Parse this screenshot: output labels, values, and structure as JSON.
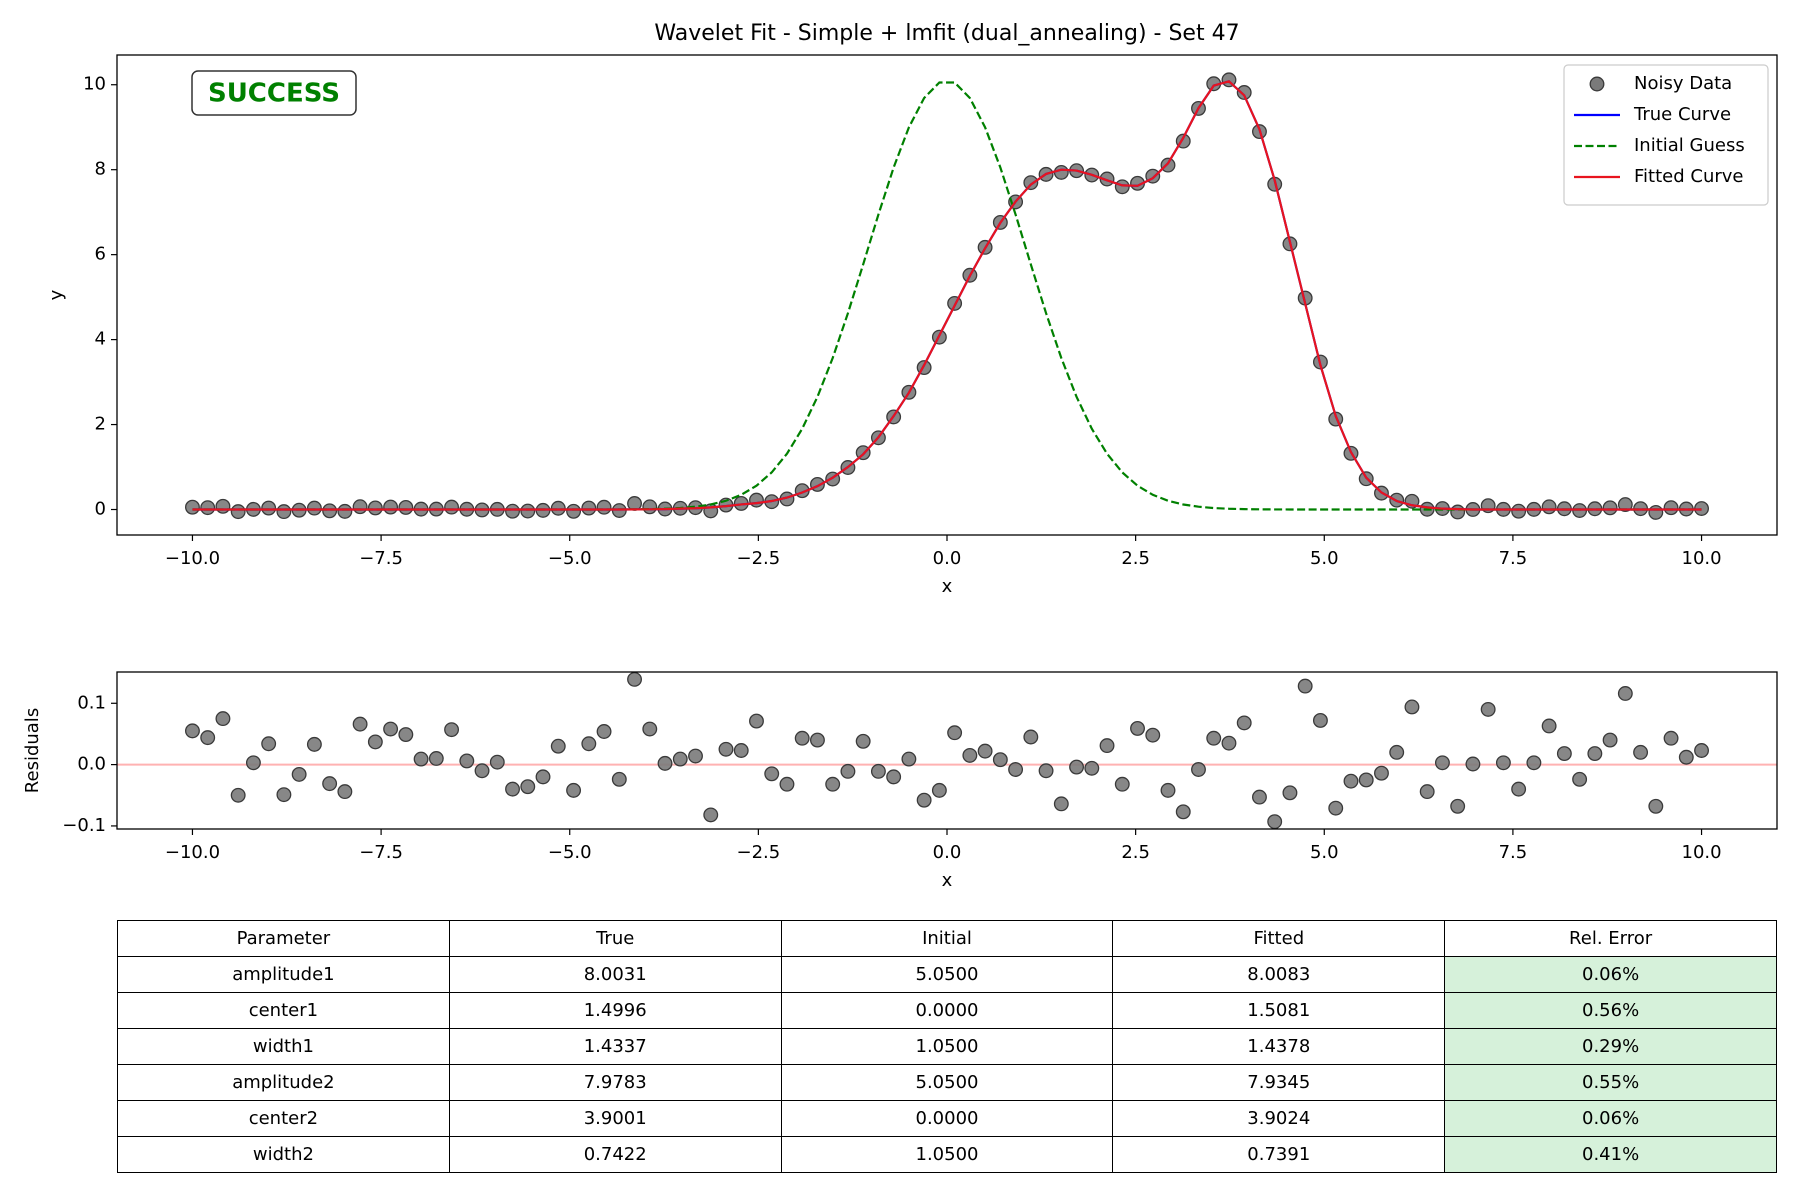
{
  "chart_data": [
    {
      "type": "line",
      "title": "Wavelet Fit - Simple + lmfit (dual_annealing) - Set 47",
      "xlabel": "x",
      "ylabel": "y",
      "annotation": "SUCCESS",
      "annotation_color": "#008000",
      "xlim": [
        -11,
        11
      ],
      "ylim": [
        -0.6,
        10.7
      ],
      "xticks": [
        {
          "value": -10,
          "label": "−10.0"
        },
        {
          "value": -7.5,
          "label": "−7.5"
        },
        {
          "value": -5,
          "label": "−5.0"
        },
        {
          "value": -2.5,
          "label": "−2.5"
        },
        {
          "value": 0,
          "label": "0.0"
        },
        {
          "value": 2.5,
          "label": "2.5"
        },
        {
          "value": 5,
          "label": "5.0"
        },
        {
          "value": 7.5,
          "label": "7.5"
        },
        {
          "value": 10,
          "label": "10.0"
        }
      ],
      "yticks": [
        0,
        2,
        4,
        6,
        8,
        10
      ],
      "grid": false,
      "legend": "upper right",
      "x": [
        -10,
        -9.798,
        -9.596,
        -9.394,
        -9.192,
        -8.99,
        -8.788,
        -8.586,
        -8.384,
        -8.182,
        -7.98,
        -7.778,
        -7.576,
        -7.374,
        -7.172,
        -6.97,
        -6.768,
        -6.566,
        -6.364,
        -6.162,
        -5.96,
        -5.758,
        -5.556,
        -5.354,
        -5.152,
        -4.949,
        -4.747,
        -4.545,
        -4.343,
        -4.141,
        -3.939,
        -3.737,
        -3.535,
        -3.333,
        -3.131,
        -2.929,
        -2.727,
        -2.525,
        -2.323,
        -2.121,
        -1.919,
        -1.717,
        -1.515,
        -1.313,
        -1.111,
        -0.909,
        -0.707,
        -0.505,
        -0.303,
        -0.101,
        0.101,
        0.303,
        0.505,
        0.707,
        0.909,
        1.111,
        1.313,
        1.515,
        1.717,
        1.919,
        2.121,
        2.323,
        2.525,
        2.727,
        2.929,
        3.131,
        3.333,
        3.535,
        3.737,
        3.939,
        4.141,
        4.343,
        4.545,
        4.747,
        4.949,
        5.152,
        5.354,
        5.556,
        5.758,
        5.96,
        6.162,
        6.364,
        6.566,
        6.768,
        6.97,
        7.172,
        7.374,
        7.576,
        7.778,
        7.98,
        8.182,
        8.384,
        8.586,
        8.788,
        8.99,
        9.192,
        9.394,
        9.596,
        9.798,
        10
      ],
      "series": [
        {
          "name": "Noisy Data",
          "style": "marker",
          "color": "#7a7a7a",
          "edgecolor": "#3a3a3a",
          "values": [
            0.055,
            0.044,
            0.075,
            -0.05,
            0.003,
            0.034,
            -0.049,
            -0.016,
            0.033,
            -0.031,
            -0.044,
            0.066,
            0.037,
            0.058,
            0.049,
            0.009,
            0.01,
            0.057,
            0.006,
            -0.01,
            0.004,
            -0.04,
            -0.036,
            -0.02,
            0.03,
            -0.042,
            0.034,
            0.054,
            -0.024,
            0.142,
            0.063,
            0.012,
            0.029,
            0.044,
            -0.032,
            0.105,
            0.143,
            0.221,
            0.185,
            0.248,
            0.443,
            0.59,
            0.718,
            0.989,
            1.338,
            1.689,
            2.18,
            2.759,
            3.342,
            4.058,
            4.852,
            5.515,
            6.172,
            6.758,
            7.242,
            7.695,
            7.89,
            7.936,
            7.976,
            7.874,
            7.781,
            7.598,
            7.679,
            7.848,
            8.108,
            8.673,
            9.442,
            10.023,
            10.115,
            9.818,
            8.897,
            7.657,
            6.254,
            4.978,
            3.472,
            2.129,
            1.323,
            0.725,
            0.386,
            0.22,
            0.194,
            0.006,
            0.023,
            -0.058,
            0.001,
            0.09,
            0.003,
            -0.04,
            0.003,
            0.063,
            0.018,
            -0.024,
            0.018,
            0.04,
            0.116,
            0.02,
            -0.068,
            0.043,
            0.012,
            0.023
          ]
        },
        {
          "name": "True Curve",
          "style": "solid",
          "color": "#0000ff",
          "values": [
            0,
            0,
            0,
            0,
            0,
            0,
            0,
            0,
            0,
            0,
            0,
            0,
            0,
            0,
            0,
            0,
            0,
            0,
            0,
            0,
            0,
            0,
            0,
            0,
            0,
            0,
            0,
            0,
            0,
            0.003,
            0.005,
            0.01,
            0.02,
            0.03,
            0.05,
            0.08,
            0.12,
            0.15,
            0.2,
            0.28,
            0.4,
            0.55,
            0.75,
            1.0,
            1.3,
            1.7,
            2.2,
            2.75,
            3.4,
            4.1,
            4.8,
            5.5,
            6.15,
            6.75,
            7.25,
            7.65,
            7.9,
            8.0,
            7.98,
            7.88,
            7.75,
            7.63,
            7.62,
            7.8,
            8.15,
            8.75,
            9.45,
            9.98,
            10.08,
            9.75,
            8.95,
            7.75,
            6.3,
            4.85,
            3.4,
            2.2,
            1.35,
            0.75,
            0.4,
            0.2,
            0.1,
            0.05,
            0.02,
            0.01,
            0,
            0,
            0,
            0,
            0,
            0,
            0,
            0,
            0,
            0,
            0,
            0,
            0,
            0,
            0,
            0
          ]
        },
        {
          "name": "Initial Guess",
          "style": "dashed",
          "color": "#008000",
          "values": [
            0,
            0,
            0,
            0,
            0,
            0,
            0,
            0,
            0,
            0,
            0,
            0,
            0,
            0,
            0,
            0,
            0,
            0,
            0,
            0,
            0,
            0,
            0,
            0,
            0,
            0,
            0,
            0.001,
            0.002,
            0.004,
            0.009,
            0.018,
            0.035,
            0.066,
            0.118,
            0.206,
            0.346,
            0.56,
            0.874,
            1.313,
            1.901,
            2.652,
            3.566,
            4.622,
            5.77,
            6.944,
            8.052,
            8.997,
            9.688,
            10.053,
            10.053,
            9.688,
            8.997,
            8.052,
            6.944,
            5.77,
            4.622,
            3.566,
            2.652,
            1.901,
            1.313,
            0.874,
            0.56,
            0.346,
            0.206,
            0.118,
            0.066,
            0.035,
            0.018,
            0.009,
            0.004,
            0.002,
            0.001,
            0,
            0,
            0,
            0,
            0,
            0,
            0,
            0,
            0,
            0,
            0,
            0,
            0,
            0,
            0,
            0,
            0,
            0,
            0,
            0,
            0,
            0,
            0,
            0,
            0,
            0,
            0
          ]
        },
        {
          "name": "Fitted Curve",
          "style": "solid",
          "color": "#e8141e",
          "values": [
            0,
            0,
            0,
            0,
            0,
            0,
            0,
            0,
            0,
            0,
            0,
            0,
            0,
            0,
            0,
            0,
            0,
            0,
            0,
            0,
            0,
            0,
            0,
            0,
            0,
            0,
            0,
            0,
            0,
            0.003,
            0.005,
            0.01,
            0.02,
            0.03,
            0.05,
            0.08,
            0.12,
            0.15,
            0.2,
            0.28,
            0.4,
            0.55,
            0.75,
            1.0,
            1.3,
            1.7,
            2.2,
            2.75,
            3.4,
            4.1,
            4.8,
            5.5,
            6.15,
            6.75,
            7.25,
            7.65,
            7.9,
            8.0,
            7.98,
            7.88,
            7.75,
            7.63,
            7.62,
            7.8,
            8.15,
            8.75,
            9.45,
            9.98,
            10.08,
            9.75,
            8.95,
            7.75,
            6.3,
            4.85,
            3.4,
            2.2,
            1.35,
            0.75,
            0.4,
            0.2,
            0.1,
            0.05,
            0.02,
            0.01,
            0,
            0,
            0,
            0,
            0,
            0,
            0,
            0,
            0,
            0,
            0,
            0,
            0,
            0,
            0,
            0
          ]
        }
      ]
    },
    {
      "type": "scatter",
      "xlabel": "x",
      "ylabel": "Residuals",
      "xlim": [
        -11,
        11
      ],
      "ylim": [
        -0.105,
        0.151
      ],
      "xticks": [
        {
          "value": -10,
          "label": "−10.0"
        },
        {
          "value": -7.5,
          "label": "−7.5"
        },
        {
          "value": -5,
          "label": "−5.0"
        },
        {
          "value": -2.5,
          "label": "−2.5"
        },
        {
          "value": 0,
          "label": "0.0"
        },
        {
          "value": 2.5,
          "label": "2.5"
        },
        {
          "value": 5,
          "label": "5.0"
        },
        {
          "value": 7.5,
          "label": "7.5"
        },
        {
          "value": 10,
          "label": "10.0"
        }
      ],
      "yticks": [
        {
          "value": -0.1,
          "label": "−0.1"
        },
        {
          "value": 0,
          "label": "0.0"
        },
        0.1
      ],
      "grid": false,
      "hline": 0,
      "hline_color": "#ffb2b2",
      "color": "#7a7a7a",
      "edgecolor": "#3a3a3a",
      "values": [
        0.055,
        0.044,
        0.075,
        -0.05,
        0.003,
        0.034,
        -0.049,
        -0.016,
        0.033,
        -0.031,
        -0.044,
        0.066,
        0.037,
        0.058,
        0.049,
        0.009,
        0.01,
        0.057,
        0.006,
        -0.01,
        0.004,
        -0.04,
        -0.036,
        -0.02,
        0.03,
        -0.042,
        0.034,
        0.054,
        -0.024,
        0.139,
        0.058,
        0.002,
        0.009,
        0.014,
        -0.082,
        0.025,
        0.023,
        0.071,
        -0.015,
        -0.032,
        0.043,
        0.04,
        -0.032,
        -0.011,
        0.038,
        -0.011,
        -0.02,
        0.009,
        -0.058,
        -0.042,
        0.052,
        0.015,
        0.022,
        0.008,
        -0.008,
        0.045,
        -0.01,
        -0.064,
        -0.004,
        -0.006,
        0.031,
        -0.032,
        0.059,
        0.048,
        -0.042,
        -0.077,
        -0.008,
        0.043,
        0.035,
        0.068,
        -0.053,
        -0.093,
        -0.046,
        0.128,
        0.072,
        -0.071,
        -0.027,
        -0.025,
        -0.014,
        0.02,
        0.094,
        -0.044,
        0.003,
        -0.068,
        0.001,
        0.09,
        0.003,
        -0.04,
        0.003,
        0.063,
        0.018,
        -0.024,
        0.018,
        0.04,
        0.116,
        0.02,
        -0.068,
        0.043,
        0.012,
        0.023
      ]
    }
  ],
  "table": {
    "columns": [
      "Parameter",
      "True",
      "Initial",
      "Fitted",
      "Rel. Error"
    ],
    "highlight_color": "#d6f1da",
    "rows": [
      [
        "amplitude1",
        "8.0031",
        "5.0500",
        "8.0083",
        "0.06%"
      ],
      [
        "center1",
        "1.4996",
        "0.0000",
        "1.5081",
        "0.56%"
      ],
      [
        "width1",
        "1.4337",
        "1.0500",
        "1.4378",
        "0.29%"
      ],
      [
        "amplitude2",
        "7.9783",
        "5.0500",
        "7.9345",
        "0.55%"
      ],
      [
        "center2",
        "3.9001",
        "0.0000",
        "3.9024",
        "0.06%"
      ],
      [
        "width2",
        "0.7422",
        "1.0500",
        "0.7391",
        "0.41%"
      ]
    ]
  }
}
